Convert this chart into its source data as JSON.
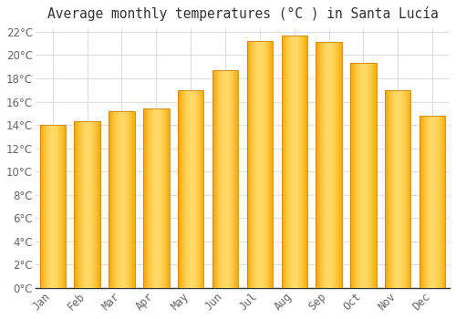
{
  "title": "Average monthly temperatures (°C ) in Santa Lucía",
  "months": [
    "Jan",
    "Feb",
    "Mar",
    "Apr",
    "May",
    "Jun",
    "Jul",
    "Aug",
    "Sep",
    "Oct",
    "Nov",
    "Dec"
  ],
  "values": [
    14.0,
    14.3,
    15.2,
    15.4,
    17.0,
    18.7,
    21.2,
    21.7,
    21.1,
    19.3,
    17.0,
    14.8
  ],
  "bar_color_center": "#FFD966",
  "bar_color_edge": "#F5A800",
  "bar_outline_color": "#C8820A",
  "background_color": "#FFFFFF",
  "grid_color": "#DDDDDD",
  "text_color": "#666666",
  "axis_color": "#333333",
  "ylim": [
    0,
    22
  ],
  "ytick_step": 2,
  "title_fontsize": 10.5,
  "tick_fontsize": 8.5,
  "bar_width": 0.75
}
